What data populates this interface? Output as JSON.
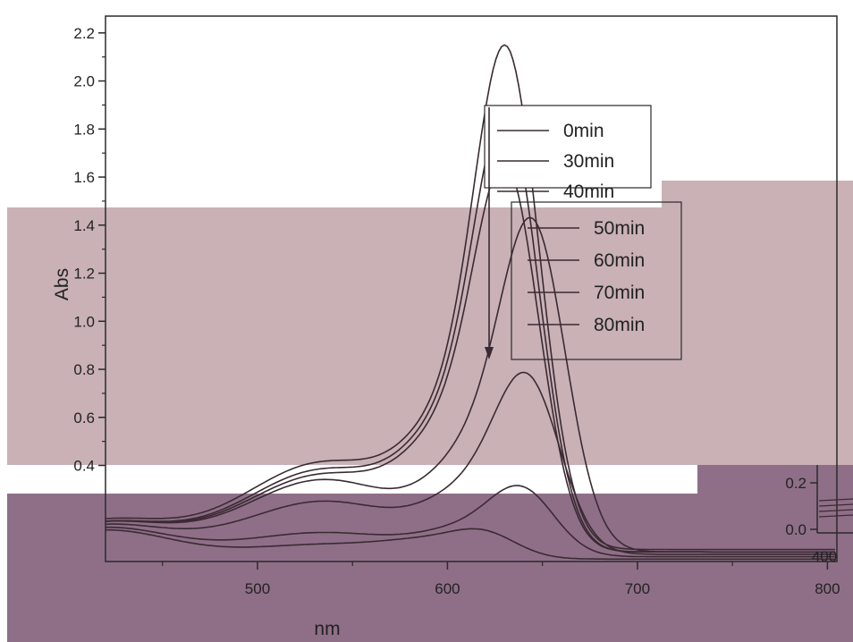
{
  "colors": {
    "background": "#ffffff",
    "band_mid": "#c9b1b6",
    "band_low": "#8f6f88",
    "curve": "#3a2a33",
    "axis": "#2a2a2a"
  },
  "chart_data": {
    "type": "line",
    "title": "",
    "xlabel": "nm",
    "ylabel": "Abs",
    "xlim": [
      420,
      805
    ],
    "ylim": [
      0.0,
      2.27
    ],
    "x_ticks": [
      500,
      600,
      700,
      800
    ],
    "y_ticks": [
      0.4,
      0.6,
      0.8,
      1.0,
      1.2,
      1.4,
      1.6,
      1.8,
      2.0,
      2.2
    ],
    "inset_ticks": {
      "y": [
        "0.2",
        "0.0"
      ],
      "x": [
        "400"
      ]
    },
    "grid": false,
    "legend_position": "top-right",
    "legend": [
      "0min",
      "30min",
      "40min",
      "50min",
      "60min",
      "70min",
      "80min"
    ],
    "series": [
      {
        "name": "0min",
        "peak_x": 632,
        "peak_y": 2.12,
        "shoulder_y": 0.8,
        "tail_y": 0.05,
        "bump_y": 0.36
      },
      {
        "name": "30min",
        "peak_x": 632,
        "peak_y": 1.86,
        "shoulder_y": 0.78,
        "tail_y": 0.04,
        "bump_y": 0.34
      },
      {
        "name": "40min",
        "peak_x": 632,
        "peak_y": 1.64,
        "shoulder_y": 0.74,
        "tail_y": 0.04,
        "bump_y": 0.32
      },
      {
        "name": "50min",
        "peak_x": 646,
        "peak_y": 1.42,
        "shoulder_y": 0.7,
        "tail_y": 0.04,
        "bump_y": 0.3
      },
      {
        "name": "60min",
        "peak_x": 643,
        "peak_y": 0.77,
        "shoulder_y": 0.42,
        "tail_y": 0.03,
        "bump_y": 0.22
      },
      {
        "name": "70min",
        "peak_x": 640,
        "peak_y": 0.3,
        "shoulder_y": 0.18,
        "tail_y": 0.02,
        "bump_y": 0.1
      },
      {
        "name": "80min",
        "peak_x": 620,
        "peak_y": 0.12,
        "shoulder_y": 0.1,
        "tail_y": 0.01,
        "bump_y": 0.06
      }
    ]
  }
}
